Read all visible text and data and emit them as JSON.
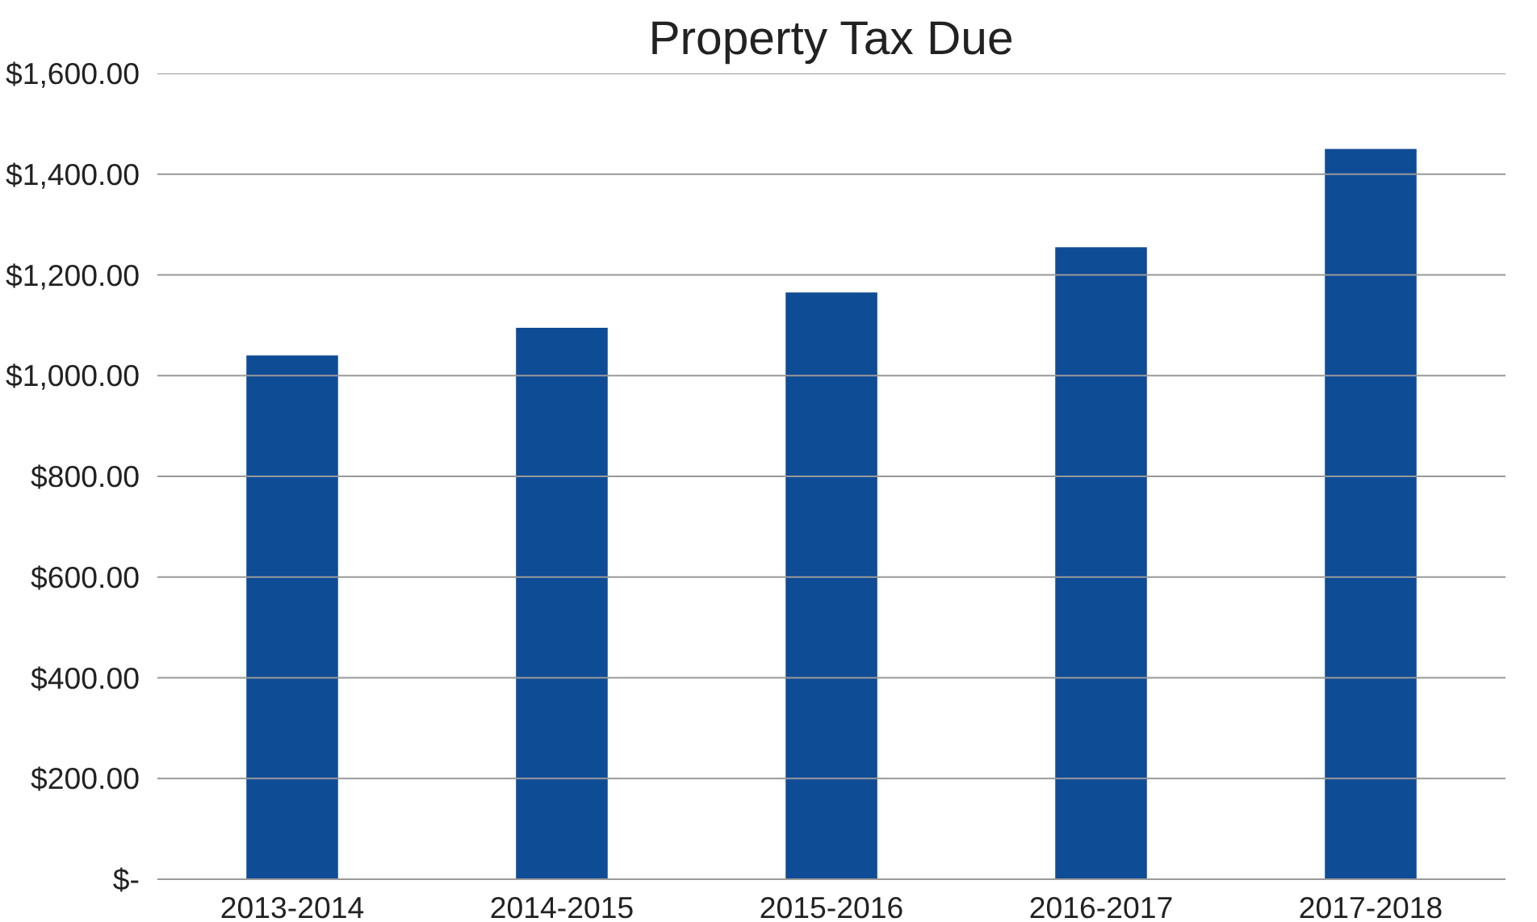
{
  "chart_data": {
    "type": "bar",
    "title": "Property Tax Due",
    "categories": [
      "2013-2014",
      "2014-2015",
      "2015-2016",
      "2016-2017",
      "2017-2018"
    ],
    "values": [
      1040,
      1095,
      1165,
      1255,
      1450
    ],
    "color": "#0f4c96",
    "ylim": [
      0,
      1600
    ],
    "yticks": [
      {
        "value": 0,
        "label": "$-"
      },
      {
        "value": 200,
        "label": "$200.00"
      },
      {
        "value": 400,
        "label": "$400.00"
      },
      {
        "value": 600,
        "label": "$600.00"
      },
      {
        "value": 800,
        "label": "$800.00"
      },
      {
        "value": 1000,
        "label": "$1,000.00"
      },
      {
        "value": 1200,
        "label": "$1,200.00"
      },
      {
        "value": 1400,
        "label": "$1,400.00"
      },
      {
        "value": 1600,
        "label": "$1,600.00"
      }
    ],
    "grid": "y"
  }
}
